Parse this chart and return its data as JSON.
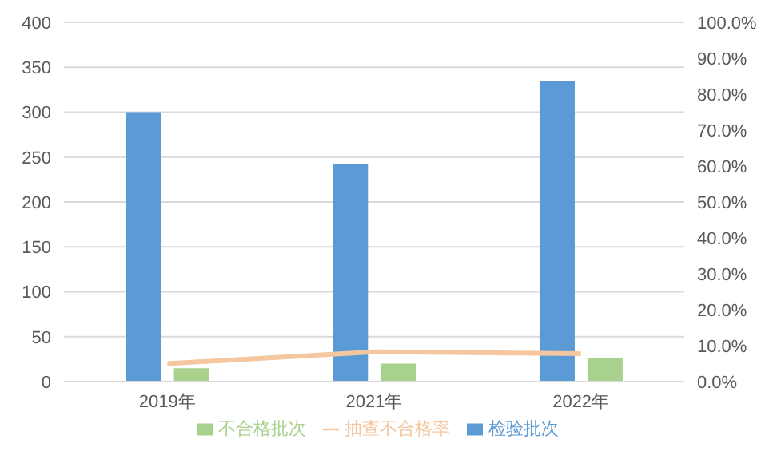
{
  "chart_data": {
    "type": "bar",
    "categories": [
      "2019年",
      "2021年",
      "2022年"
    ],
    "series": [
      {
        "name": "检验批次",
        "color": "#5b9bd5",
        "values": [
          300,
          242,
          335
        ]
      },
      {
        "name": "不合格批次",
        "color": "#a9d18e",
        "values": [
          15,
          20,
          26
        ]
      },
      {
        "name": "抽查不合格率",
        "type": "line",
        "axis": "y2",
        "color": "#f4c7a0",
        "values": [
          5.0,
          8.3,
          7.8
        ]
      }
    ],
    "ylim": [
      0,
      400
    ],
    "yticks": [
      0,
      50,
      100,
      150,
      200,
      250,
      300,
      350,
      400
    ],
    "y2lim": [
      0,
      100
    ],
    "y2ticks": [
      {
        "value": 0,
        "label": "0.0%"
      },
      {
        "value": 10,
        "label": "10.0%"
      },
      {
        "value": 20,
        "label": "20.0%"
      },
      {
        "value": 30,
        "label": "30.0%"
      },
      {
        "value": 40,
        "label": "40.0%"
      },
      {
        "value": 50,
        "label": "50.0%"
      },
      {
        "value": 60,
        "label": "60.0%"
      },
      {
        "value": 70,
        "label": "70.0%"
      },
      {
        "value": 80,
        "label": "80.0%"
      },
      {
        "value": 90,
        "label": "90.0%"
      },
      {
        "value": 100,
        "label": "100.0%"
      }
    ],
    "grid": "y",
    "legend": "bottom",
    "marker": "none"
  }
}
